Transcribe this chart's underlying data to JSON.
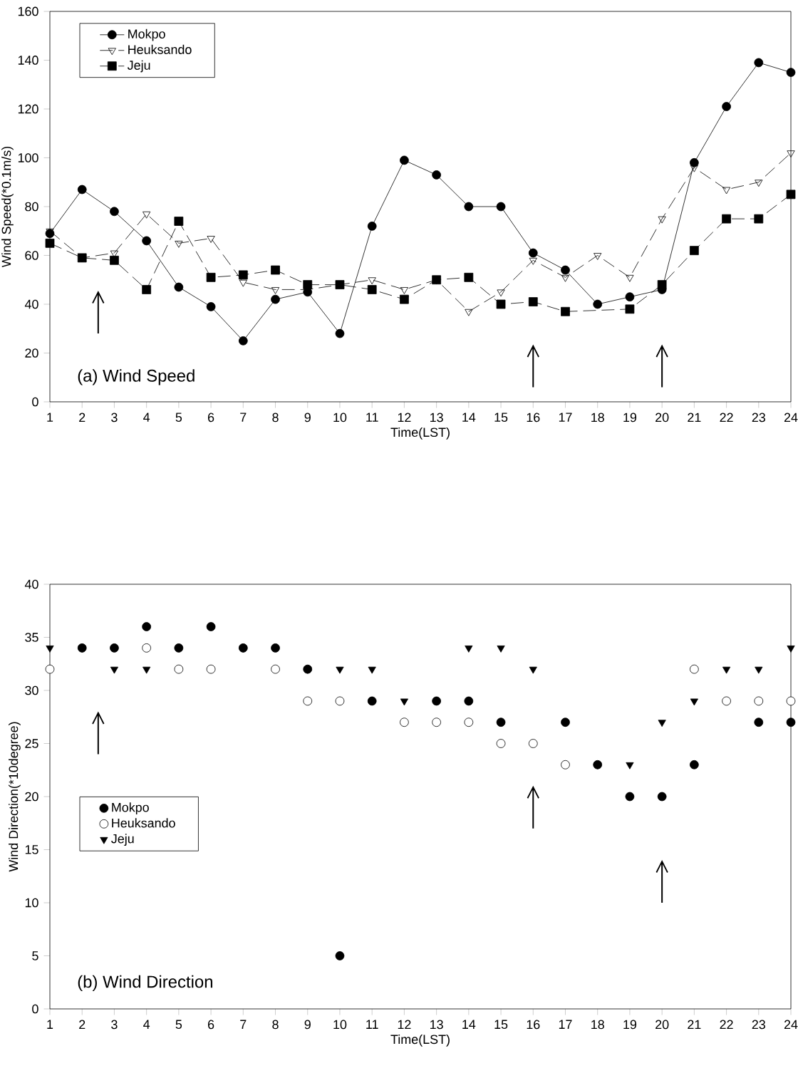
{
  "chart_data": [
    {
      "type": "line",
      "title": "(a) Wind Speed",
      "xlabel": "Time(LST)",
      "ylabel": "Wind Speed(*0.1m/s)",
      "x": [
        1,
        2,
        3,
        4,
        5,
        6,
        7,
        8,
        9,
        10,
        11,
        12,
        13,
        14,
        15,
        16,
        17,
        18,
        19,
        20,
        21,
        22,
        23,
        24
      ],
      "xlim": [
        1,
        24
      ],
      "xticks": [
        1,
        2,
        3,
        4,
        5,
        6,
        7,
        8,
        9,
        10,
        11,
        12,
        13,
        14,
        15,
        16,
        17,
        18,
        19,
        20,
        21,
        22,
        23,
        24
      ],
      "ylim": [
        0,
        160
      ],
      "yticks": [
        0,
        20,
        40,
        60,
        80,
        100,
        120,
        140,
        160
      ],
      "legend": "top left",
      "grid": false,
      "series": [
        {
          "name": "Mokpo",
          "color": "#000000",
          "marker": "circle",
          "line_style": "solid",
          "values": [
            69,
            87,
            78,
            66,
            47,
            39,
            25,
            42,
            45,
            28,
            72,
            99,
            93,
            80,
            80,
            61,
            54,
            40,
            43,
            46,
            98,
            121,
            139,
            135
          ]
        },
        {
          "name": "Heuksando",
          "color": "#000000",
          "marker": "triangle",
          "line_style": "dashed",
          "values": [
            70,
            59,
            61,
            77,
            65,
            67,
            49,
            46,
            46,
            null,
            50,
            46,
            50,
            37,
            45,
            58,
            51,
            60,
            51,
            75,
            96,
            87,
            90,
            102
          ]
        },
        {
          "name": "Jeju",
          "color": "#000000",
          "marker": "square",
          "line_style": "dashed",
          "values": [
            65,
            59,
            58,
            46,
            74,
            51,
            52,
            54,
            48,
            48,
            46,
            42,
            50,
            51,
            40,
            41,
            37,
            null,
            38,
            48,
            62,
            75,
            75,
            85
          ]
        }
      ]
    },
    {
      "type": "scatter",
      "title": "(b) Wind Direction",
      "xlabel": "Time(LST)",
      "ylabel": "Wind Direction(*10degree)",
      "x": [
        1,
        2,
        3,
        4,
        5,
        6,
        7,
        8,
        9,
        10,
        11,
        12,
        13,
        14,
        15,
        16,
        17,
        18,
        19,
        20,
        21,
        22,
        23,
        24
      ],
      "xlim": [
        1,
        24
      ],
      "xticks": [
        1,
        2,
        3,
        4,
        5,
        6,
        7,
        8,
        9,
        10,
        11,
        12,
        13,
        14,
        15,
        16,
        17,
        18,
        19,
        20,
        21,
        22,
        23,
        24
      ],
      "ylim": [
        0,
        40
      ],
      "yticks": [
        0,
        5,
        10,
        15,
        20,
        25,
        30,
        35,
        40
      ],
      "legend": "left",
      "grid": false,
      "series": [
        {
          "name": "Mokpo",
          "color": "#000000",
          "marker": "circle",
          "values": [
            null,
            34,
            34,
            36,
            34,
            36,
            34,
            34,
            32,
            5,
            29,
            null,
            29,
            29,
            27,
            null,
            27,
            23,
            20,
            20,
            23,
            null,
            27,
            27
          ]
        },
        {
          "name": "Heuksando",
          "color": "#000000",
          "marker": "circle",
          "values": [
            32,
            null,
            null,
            34,
            32,
            32,
            null,
            32,
            29,
            29,
            null,
            27,
            27,
            27,
            25,
            25,
            23,
            null,
            null,
            null,
            32,
            29,
            29,
            29
          ]
        },
        {
          "name": "Jeju",
          "color": "#000000",
          "marker": "triangle",
          "values": [
            34,
            34,
            32,
            32,
            null,
            null,
            34,
            null,
            32,
            32,
            32,
            29,
            null,
            34,
            34,
            32,
            27,
            23,
            23,
            27,
            29,
            32,
            32,
            34
          ]
        }
      ]
    }
  ]
}
